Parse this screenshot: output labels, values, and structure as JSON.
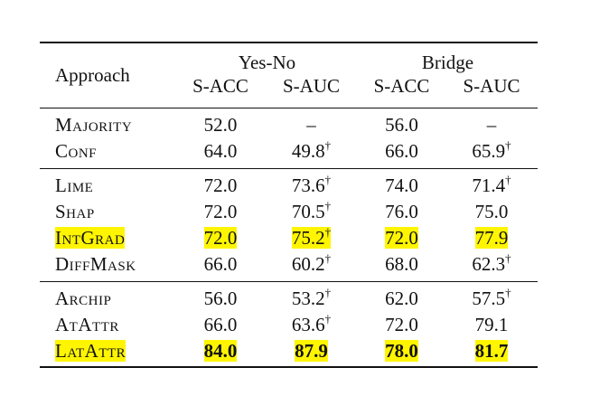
{
  "header": {
    "approach_label": "Approach",
    "group1": "Yes-No",
    "group2": "Bridge",
    "cols": [
      "S-ACC",
      "S-AUC",
      "S-ACC",
      "S-AUC"
    ]
  },
  "sections": [
    {
      "rows": [
        {
          "name": "Majority",
          "vals": [
            "52.0",
            "–",
            "56.0",
            "–"
          ],
          "dagger": [
            false,
            false,
            false,
            false
          ],
          "highlight": false,
          "bold": false
        },
        {
          "name": "Conf",
          "vals": [
            "64.0",
            "49.8",
            "66.0",
            "65.9"
          ],
          "dagger": [
            false,
            true,
            false,
            true
          ],
          "highlight": false,
          "bold": false
        }
      ]
    },
    {
      "rows": [
        {
          "name": "Lime",
          "vals": [
            "72.0",
            "73.6",
            "74.0",
            "71.4"
          ],
          "dagger": [
            false,
            true,
            false,
            true
          ],
          "highlight": false,
          "bold": false
        },
        {
          "name": "Shap",
          "vals": [
            "72.0",
            "70.5",
            "76.0",
            "75.0"
          ],
          "dagger": [
            false,
            true,
            false,
            false
          ],
          "highlight": false,
          "bold": false
        },
        {
          "name": "IntGrad",
          "vals": [
            "72.0",
            "75.2",
            "72.0",
            "77.9"
          ],
          "dagger": [
            false,
            true,
            false,
            false
          ],
          "highlight": true,
          "bold": false
        },
        {
          "name": "DiffMask",
          "vals": [
            "66.0",
            "60.2",
            "68.0",
            "62.3"
          ],
          "dagger": [
            false,
            true,
            false,
            true
          ],
          "highlight": false,
          "bold": false
        }
      ]
    },
    {
      "rows": [
        {
          "name": "Archip",
          "vals": [
            "56.0",
            "53.2",
            "62.0",
            "57.5"
          ],
          "dagger": [
            false,
            true,
            false,
            true
          ],
          "highlight": false,
          "bold": false
        },
        {
          "name": "AtAttr",
          "vals": [
            "66.0",
            "63.6",
            "72.0",
            "79.1"
          ],
          "dagger": [
            false,
            true,
            false,
            false
          ],
          "highlight": false,
          "bold": false
        },
        {
          "name": "LatAttr",
          "vals": [
            "84.0",
            "87.9",
            "78.0",
            "81.7"
          ],
          "dagger": [
            false,
            false,
            false,
            false
          ],
          "highlight": true,
          "bold": true
        }
      ]
    }
  ],
  "dagger_symbol": "†",
  "highlight_color": "#fff500"
}
